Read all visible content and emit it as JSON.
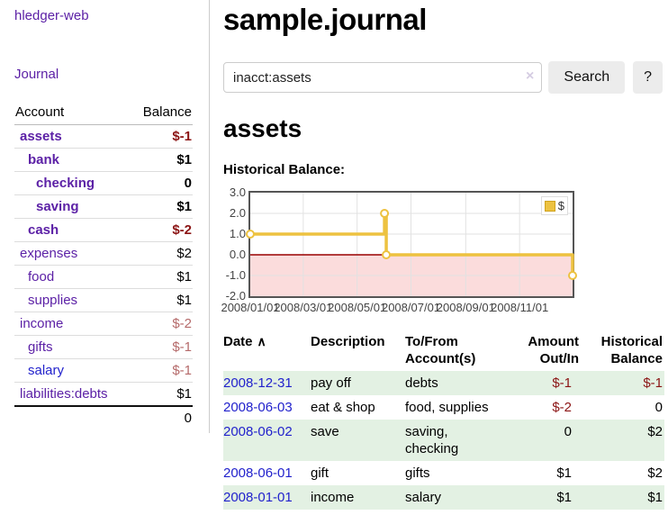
{
  "app": {
    "brand": "hledger-web",
    "nav_journal": "Journal"
  },
  "sidebar": {
    "header": {
      "account": "Account",
      "balance": "Balance"
    },
    "accounts": [
      {
        "name": "assets",
        "depth": 1,
        "bold": true,
        "balance": "$-1",
        "style": "neg"
      },
      {
        "name": "bank",
        "depth": 2,
        "bold": true,
        "balance": "$1",
        "style": "pos"
      },
      {
        "name": "checking",
        "depth": 3,
        "bold": true,
        "balance": "0",
        "style": "pos"
      },
      {
        "name": "saving",
        "depth": 3,
        "bold": true,
        "balance": "$1",
        "style": "pos"
      },
      {
        "name": "cash",
        "depth": 2,
        "bold": true,
        "balance": "$-2",
        "style": "neg"
      },
      {
        "name": "expenses",
        "depth": 1,
        "bold": false,
        "balance": "$2",
        "style": "pos"
      },
      {
        "name": "food",
        "depth": 2,
        "bold": false,
        "balance": "$1",
        "style": "pos"
      },
      {
        "name": "supplies",
        "depth": 2,
        "bold": false,
        "balance": "$1",
        "style": "pos"
      },
      {
        "name": "income",
        "depth": 1,
        "bold": false,
        "balance": "$-2",
        "style": "negmuted"
      },
      {
        "name": "gifts",
        "depth": 2,
        "bold": false,
        "balance": "$-1",
        "style": "negmuted"
      },
      {
        "name": "salary",
        "depth": 2,
        "bold": false,
        "blue": true,
        "balance": "$-1",
        "style": "negmuted"
      },
      {
        "name": "liabilities:debts",
        "depth": 1,
        "bold": false,
        "balance": "$1",
        "style": "pos"
      }
    ],
    "total": "0"
  },
  "header": {
    "title": "sample.journal"
  },
  "search": {
    "value": "inacct:assets",
    "clear_icon": "×",
    "button_label": "Search",
    "help_label": "?"
  },
  "account_page": {
    "heading": "assets",
    "chart_label": "Historical Balance:"
  },
  "chart_data": {
    "type": "line",
    "title": "Historical Balance:",
    "step": true,
    "series": [
      {
        "name": "$",
        "points": [
          {
            "date": "2008-01-01",
            "value": 1
          },
          {
            "date": "2008-06-01",
            "value": 2
          },
          {
            "date": "2008-06-02",
            "value": 2
          },
          {
            "date": "2008-06-03",
            "value": 0
          },
          {
            "date": "2008-12-31",
            "value": -1
          }
        ]
      }
    ],
    "xlim": [
      "2008-01-01",
      "2008-12-31"
    ],
    "ylim": [
      -2,
      3
    ],
    "yticks": [
      {
        "v": 3,
        "label": "3.0"
      },
      {
        "v": 2,
        "label": "2.0"
      },
      {
        "v": 1,
        "label": "1.0"
      },
      {
        "v": 0,
        "label": "0.0"
      },
      {
        "v": -1,
        "label": "-1.0"
      },
      {
        "v": -2,
        "label": "-2.0"
      }
    ],
    "xticks": [
      {
        "d": "2008-01-01",
        "label": "2008/01/01"
      },
      {
        "d": "2008-03-01",
        "label": "2008/03/01"
      },
      {
        "d": "2008-05-01",
        "label": "2008/05/01"
      },
      {
        "d": "2008-07-01",
        "label": "2008/07/01"
      },
      {
        "d": "2008-09-01",
        "label": "2008/09/01"
      },
      {
        "d": "2008-11-01",
        "label": "2008/11/01"
      }
    ],
    "legend_position": "top-right",
    "grid": true,
    "colors": {
      "line": "#edc240",
      "marker_fill": "#ffffff",
      "negative_fill": "#fbdcdc",
      "zero_line": "#990000",
      "grid": "#e2e2e2",
      "border": "#555555"
    }
  },
  "register": {
    "columns": [
      {
        "label": "Date",
        "align": "left",
        "sorted": "asc"
      },
      {
        "label": "Description",
        "align": "left"
      },
      {
        "label": "To/From\nAccount(s)",
        "align": "left"
      },
      {
        "label": "Amount\nOut/In",
        "align": "right"
      },
      {
        "label": "Historical\nBalance",
        "align": "right"
      }
    ],
    "sort_icon": "∧",
    "rows": [
      {
        "date": "2008-12-31",
        "description": "pay off",
        "accounts": "debts",
        "amount": "$-1",
        "amount_style": "neg",
        "balance": "$-1",
        "balance_style": "neg"
      },
      {
        "date": "2008-06-03",
        "description": "eat & shop",
        "accounts": "food, supplies",
        "amount": "$-2",
        "amount_style": "neg",
        "balance": "0",
        "balance_style": "pos"
      },
      {
        "date": "2008-06-02",
        "description": "save",
        "accounts": "saving, checking",
        "amount": "0",
        "amount_style": "pos",
        "balance": "$2",
        "balance_style": "pos"
      },
      {
        "date": "2008-06-01",
        "description": "gift",
        "accounts": "gifts",
        "amount": "$1",
        "amount_style": "pos",
        "balance": "$2",
        "balance_style": "pos"
      },
      {
        "date": "2008-01-01",
        "description": "income",
        "accounts": "salary",
        "amount": "$1",
        "amount_style": "pos",
        "balance": "$1",
        "balance_style": "pos"
      }
    ]
  }
}
